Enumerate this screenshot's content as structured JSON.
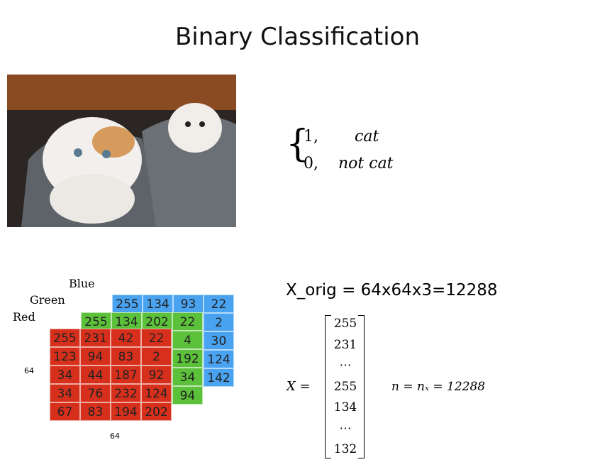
{
  "title": "Binary Classification",
  "cases": [
    {
      "value": "1,",
      "label": "cat"
    },
    {
      "value": "0,",
      "label": "not cat"
    }
  ],
  "layers": {
    "blue": {
      "name": "Blue",
      "top_row": [
        255,
        134,
        93,
        22
      ],
      "right_column": [
        2,
        30,
        124,
        142
      ]
    },
    "green": {
      "name": "Green",
      "top_row": [
        255,
        134,
        202,
        22
      ],
      "right_column": [
        4,
        192,
        34,
        94
      ]
    },
    "red": {
      "name": "Red",
      "rows": [
        [
          255,
          231,
          42,
          22
        ],
        [
          123,
          94,
          83,
          2
        ],
        [
          34,
          44,
          187,
          92
        ],
        [
          34,
          76,
          232,
          124
        ],
        [
          67,
          83,
          194,
          202
        ]
      ]
    }
  },
  "height_label": 64,
  "width_label": 64,
  "x_orig": "X_orig = 64x64x3=12288",
  "x_lhs": "X =",
  "vector": [
    "255",
    "231",
    "⋯",
    "255",
    "134",
    "⋯",
    "132"
  ],
  "n_eq": "n = nₓ = 12288"
}
